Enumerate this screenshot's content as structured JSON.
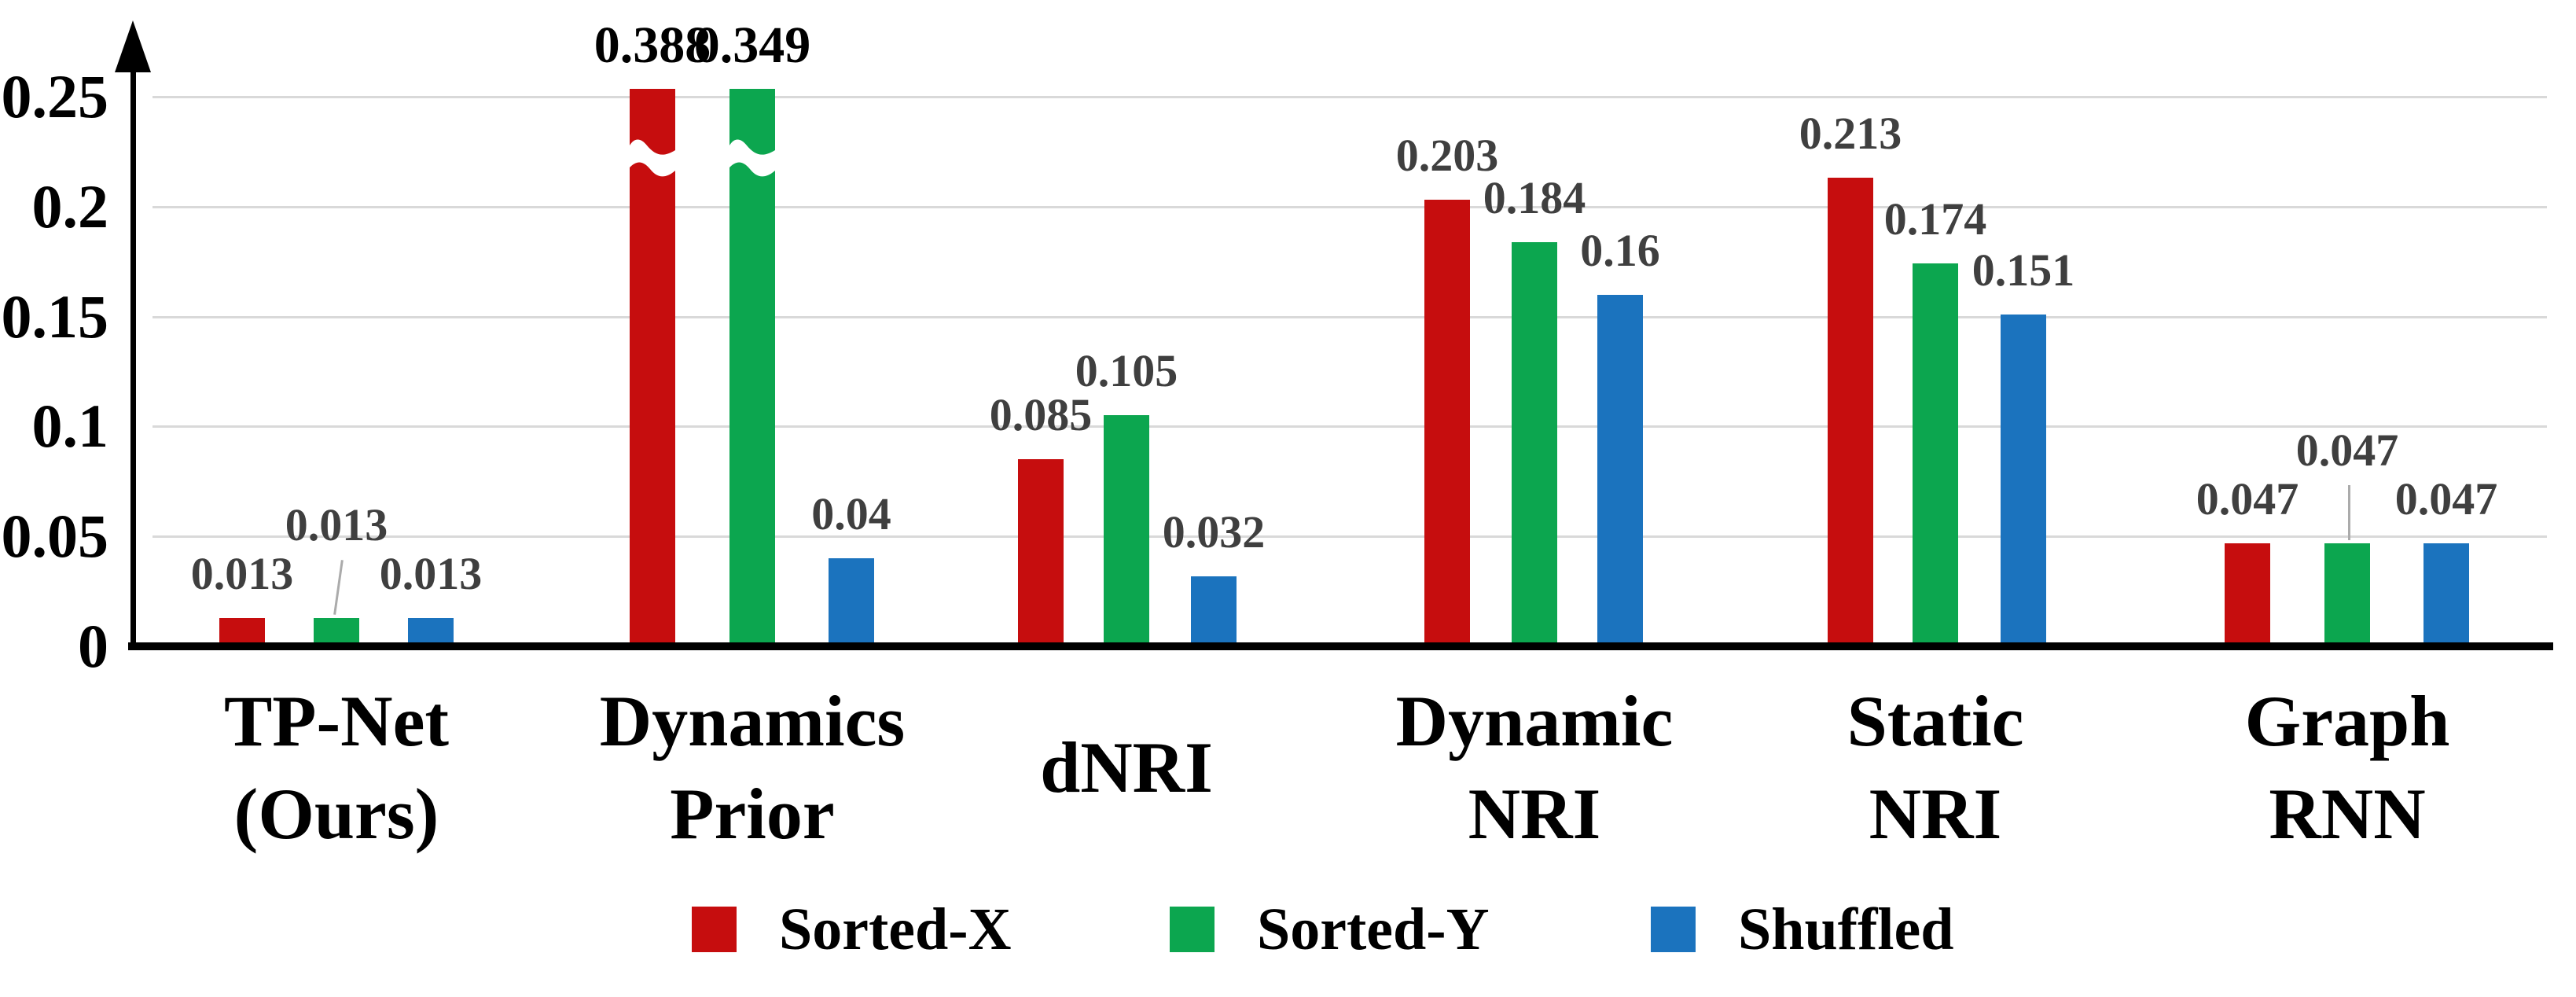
{
  "chart_data": {
    "type": "bar",
    "title": "",
    "xlabel": "",
    "ylabel": "",
    "categories": [
      [
        "TP-Net",
        "(Ours)"
      ],
      [
        "Dynamics",
        "Prior"
      ],
      [
        "dNRI"
      ],
      [
        "Dynamic",
        "NRI"
      ],
      [
        "Static",
        "NRI"
      ],
      [
        "Graph",
        "RNN"
      ]
    ],
    "series": [
      {
        "name": "Sorted-X",
        "color": "#C60D0E",
        "values": [
          0.013,
          0.388,
          0.085,
          0.203,
          0.213,
          0.047
        ]
      },
      {
        "name": "Sorted-Y",
        "color": "#0CA64F",
        "values": [
          0.013,
          0.349,
          0.105,
          0.184,
          0.174,
          0.047
        ]
      },
      {
        "name": "Shuffled",
        "color": "#1B73BE",
        "values": [
          0.013,
          0.04,
          0.032,
          0.16,
          0.151,
          0.047
        ]
      }
    ],
    "ylim": [
      0,
      0.25
    ],
    "ytick_values": [
      0,
      0.05,
      0.1,
      0.15,
      0.2,
      0.25
    ],
    "ytick_labels": [
      "0",
      "0.05",
      "0.1",
      "0.15",
      "0.2",
      "0.25"
    ],
    "grid": "horizontal",
    "legend_position": "bottom-center",
    "axis_break": {
      "clipped_at": 0.25,
      "clipped_bars": [
        {
          "category": "Dynamics Prior",
          "series": "Sorted-X",
          "value": 0.388
        },
        {
          "category": "Dynamics Prior",
          "series": "Sorted-Y",
          "value": 0.349
        }
      ]
    }
  },
  "colors": {
    "value_label_default": "#3F3F3F",
    "value_label_clipped": "#000000",
    "gridline": "#D9D9D9",
    "axis": "#000000",
    "leader_line": "#ABABAB",
    "background": "#FFFFFF"
  }
}
